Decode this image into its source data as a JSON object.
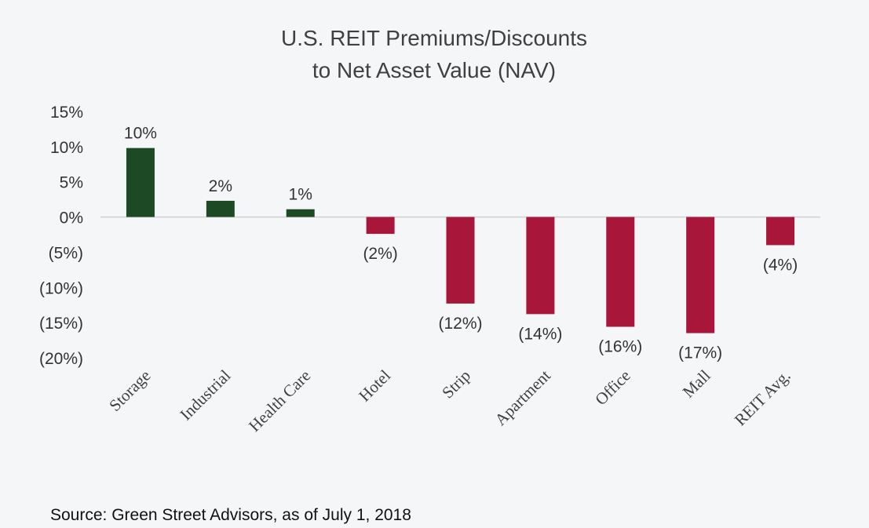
{
  "chart_data": {
    "type": "bar",
    "title_lines": [
      "U.S. REIT Premiums/Discounts",
      "to Net Asset Value (NAV)"
    ],
    "categories": [
      "Storage",
      "Industrial",
      "Health Care",
      "Hotel",
      "Strip",
      "Apartment",
      "Office",
      "Mall",
      "REIT Avg."
    ],
    "values": [
      9.8,
      2.3,
      1.1,
      -2.4,
      -12.3,
      -13.8,
      -15.6,
      -16.5,
      -4.0
    ],
    "data_labels": [
      "10%",
      "2%",
      "1%",
      "(2%)",
      "(12%)",
      "(14%)",
      "(16%)",
      "(17%)",
      "(4%)"
    ],
    "ylim": [
      -20,
      15
    ],
    "yticks": [
      15,
      10,
      5,
      0,
      -5,
      -10,
      -15,
      -20
    ],
    "ytick_labels": [
      "15%",
      "10%",
      "5%",
      "0%",
      "(5%)",
      "(10%)",
      "(15%)",
      "(20%)"
    ],
    "xlabel": "",
    "ylabel": "",
    "grid": false,
    "colors": {
      "positive": "#1d4a25",
      "negative": "#a8173a",
      "axis": "#d0d0d0"
    }
  },
  "source": "Source: Green Street Advisors, as of July 1, 2018"
}
